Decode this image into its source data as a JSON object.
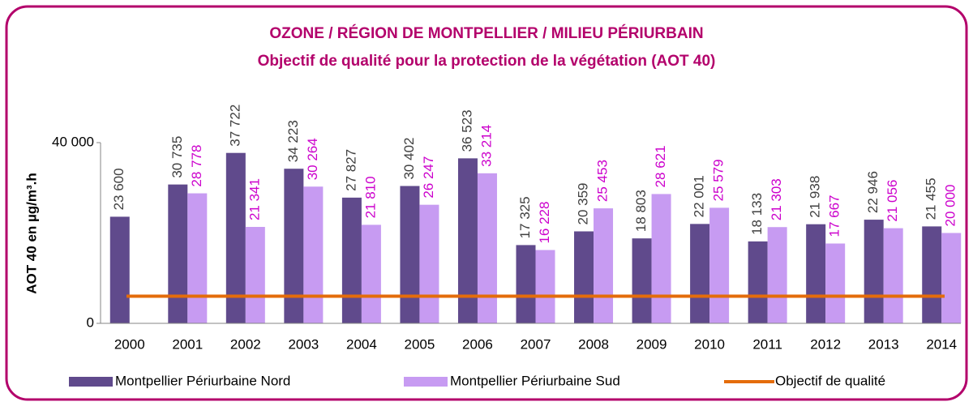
{
  "chart_data": {
    "type": "bar",
    "title": "OZONE / RÉGION DE MONTPELLIER / MILIEU PÉRIURBAIN",
    "subtitle": "Objectif de qualité pour la protection de la végétation (AOT 40)",
    "y_label": "AOT 40 en µg/m³.h",
    "categories": [
      "2000",
      "2001",
      "2002",
      "2003",
      "2004",
      "2005",
      "2006",
      "2007",
      "2008",
      "2009",
      "2010",
      "2011",
      "2012",
      "2013",
      "2014"
    ],
    "series": [
      {
        "name": "Montpellier Périurbaine Nord",
        "color": "#604a8c",
        "values": [
          23600,
          30735,
          37722,
          34223,
          27827,
          30402,
          36523,
          17325,
          20359,
          18803,
          22001,
          18133,
          21938,
          22946,
          21455
        ],
        "value_labels": [
          "23 600",
          "30 735",
          "37 722",
          "34 223",
          "27 827",
          "30 402",
          "36 523",
          "17 325",
          "20 359",
          "18 803",
          "22 001",
          "18 133",
          "21 938",
          "22 946",
          "21 455"
        ],
        "label_color": "#404040"
      },
      {
        "name": "Montpellier Périurbaine Sud",
        "color": "#c79bf2",
        "values": [
          null,
          28778,
          21341,
          30264,
          21810,
          26247,
          33214,
          16228,
          25453,
          28621,
          25579,
          21303,
          17667,
          21056,
          20000
        ],
        "value_labels": [
          null,
          "28 778",
          "21 341",
          "30 264",
          "21 810",
          "26 247",
          "33 214",
          "16 228",
          "25 453",
          "28 621",
          "25 579",
          "21 303",
          "17 667",
          "21 056",
          "20 000"
        ],
        "label_color": "#cc00cc"
      }
    ],
    "reference_line": {
      "name": "Objectif de qualité",
      "value": 6000,
      "color": "#e46c0a"
    },
    "ylim": [
      0,
      40000
    ],
    "yticks": [
      0,
      {
        "value": 40000,
        "label": "40 000"
      }
    ]
  }
}
